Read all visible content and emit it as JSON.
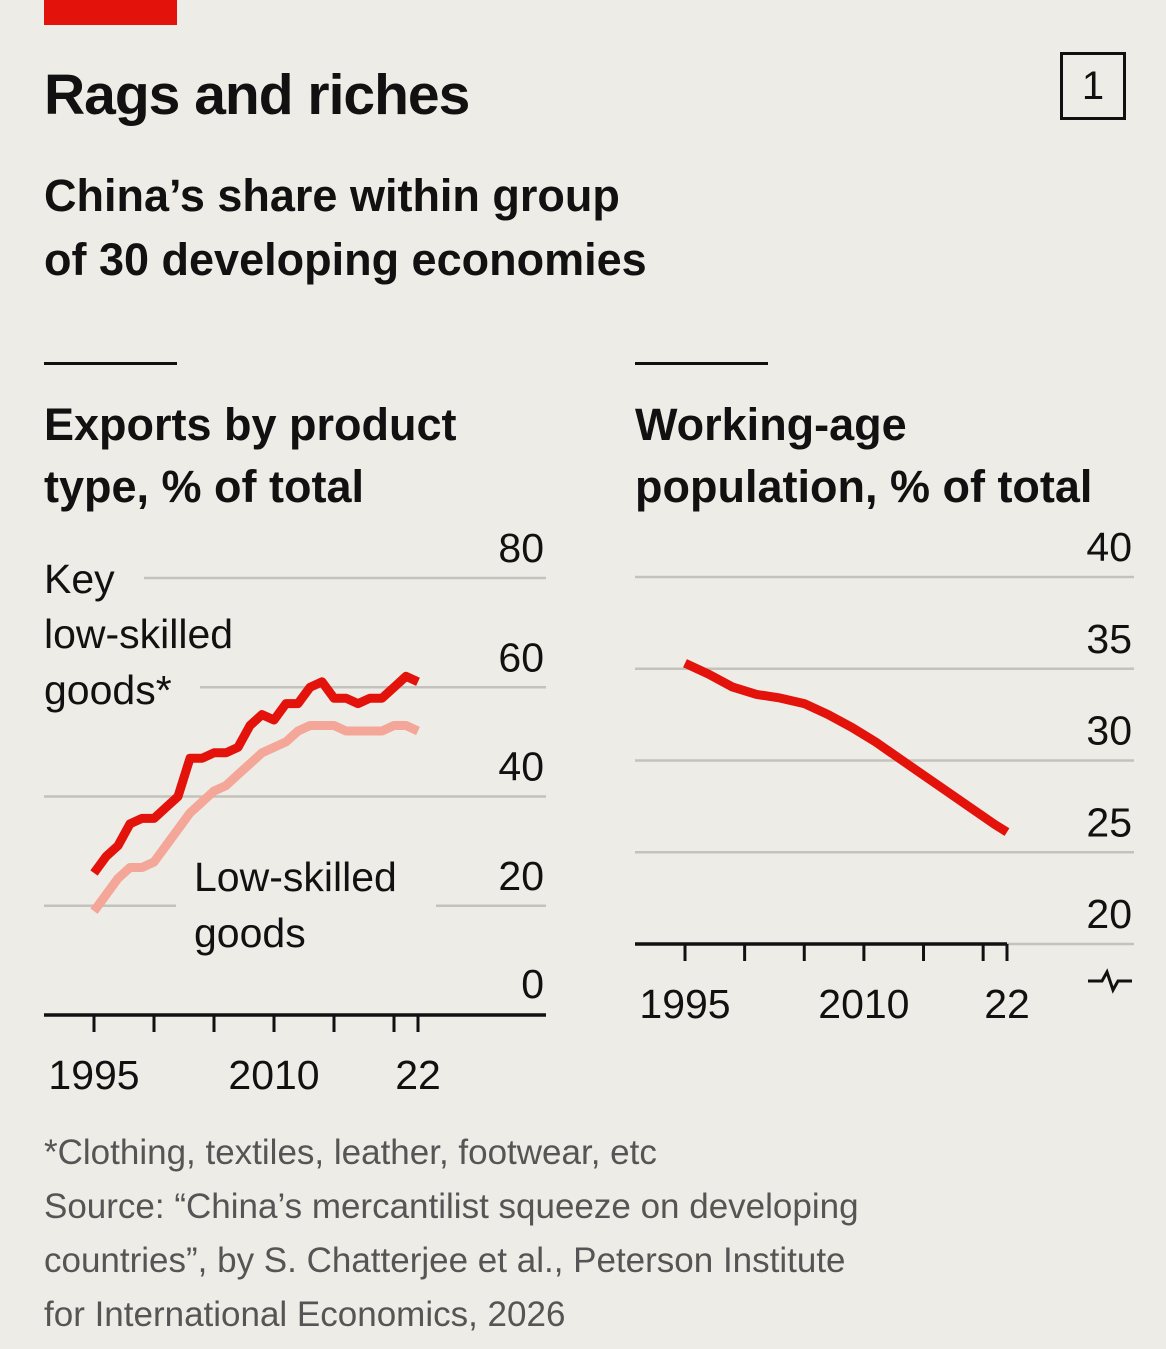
{
  "header": {
    "title": "Rags and riches",
    "chart_number": "1",
    "subtitle_lines": [
      "China’s share within group",
      "of 30 developing economies"
    ],
    "accent_color": "#e3120b"
  },
  "footer": {
    "note": "*Clothing, textiles, leather, footwear, etc",
    "source_lines": [
      "Source: “China’s mercantilist squeeze on developing",
      "countries”, by S. Chatterjee et al., Peterson Institute",
      "for International Economics, 2026"
    ]
  },
  "chart_data": [
    {
      "type": "line",
      "title_lines": [
        "Exports by product",
        "type, % of total"
      ],
      "x_ticks": [
        "1995",
        "2010",
        "22"
      ],
      "y_ticks": [
        "0",
        "20",
        "40",
        "60",
        "80"
      ],
      "ylim": [
        0,
        80
      ],
      "xlim": [
        1995,
        2022
      ],
      "grid": true,
      "series": [
        {
          "name": "Key low-skilled goods*",
          "label_lines": [
            "Key",
            "low-skilled",
            "goods*"
          ],
          "color": "#e3120b",
          "x": [
            1995,
            1996,
            1997,
            1998,
            1999,
            2000,
            2001,
            2002,
            2003,
            2004,
            2005,
            2006,
            2007,
            2008,
            2009,
            2010,
            2011,
            2012,
            2013,
            2014,
            2015,
            2016,
            2017,
            2018,
            2019,
            2020,
            2021,
            2022
          ],
          "values": [
            26,
            29,
            31,
            35,
            36,
            36,
            38,
            40,
            47,
            47,
            48,
            48,
            49,
            53,
            55,
            54,
            57,
            57,
            60,
            61,
            58,
            58,
            57,
            58,
            58,
            60,
            62,
            61
          ]
        },
        {
          "name": "Low-skilled goods",
          "label_lines": [
            "Low-skilled",
            "goods"
          ],
          "color": "#f4a698",
          "x": [
            1995,
            1996,
            1997,
            1998,
            1999,
            2000,
            2001,
            2002,
            2003,
            2004,
            2005,
            2006,
            2007,
            2008,
            2009,
            2010,
            2011,
            2012,
            2013,
            2014,
            2015,
            2016,
            2017,
            2018,
            2019,
            2020,
            2021,
            2022
          ],
          "values": [
            19,
            22,
            25,
            27,
            27,
            28,
            31,
            34,
            37,
            39,
            41,
            42,
            44,
            46,
            48,
            49,
            50,
            52,
            53,
            53,
            53,
            52,
            52,
            52,
            52,
            53,
            53,
            52
          ]
        }
      ]
    },
    {
      "type": "line",
      "title_lines": [
        "Working-age",
        "population, % of total"
      ],
      "x_ticks": [
        "1995",
        "2010",
        "22"
      ],
      "y_ticks": [
        "20",
        "25",
        "30",
        "35",
        "40"
      ],
      "ylim": [
        20,
        40
      ],
      "xlim": [
        1995,
        2022
      ],
      "axis_break": true,
      "grid": true,
      "series": [
        {
          "name": "Working-age population",
          "color": "#e3120b",
          "x": [
            1995,
            1997,
            1999,
            2001,
            2003,
            2005,
            2007,
            2009,
            2011,
            2013,
            2015,
            2017,
            2019,
            2021,
            2022
          ],
          "values": [
            35.3,
            34.7,
            34.0,
            33.6,
            33.4,
            33.1,
            32.5,
            31.8,
            31.0,
            30.1,
            29.2,
            28.3,
            27.4,
            26.5,
            26.1
          ]
        }
      ]
    }
  ]
}
